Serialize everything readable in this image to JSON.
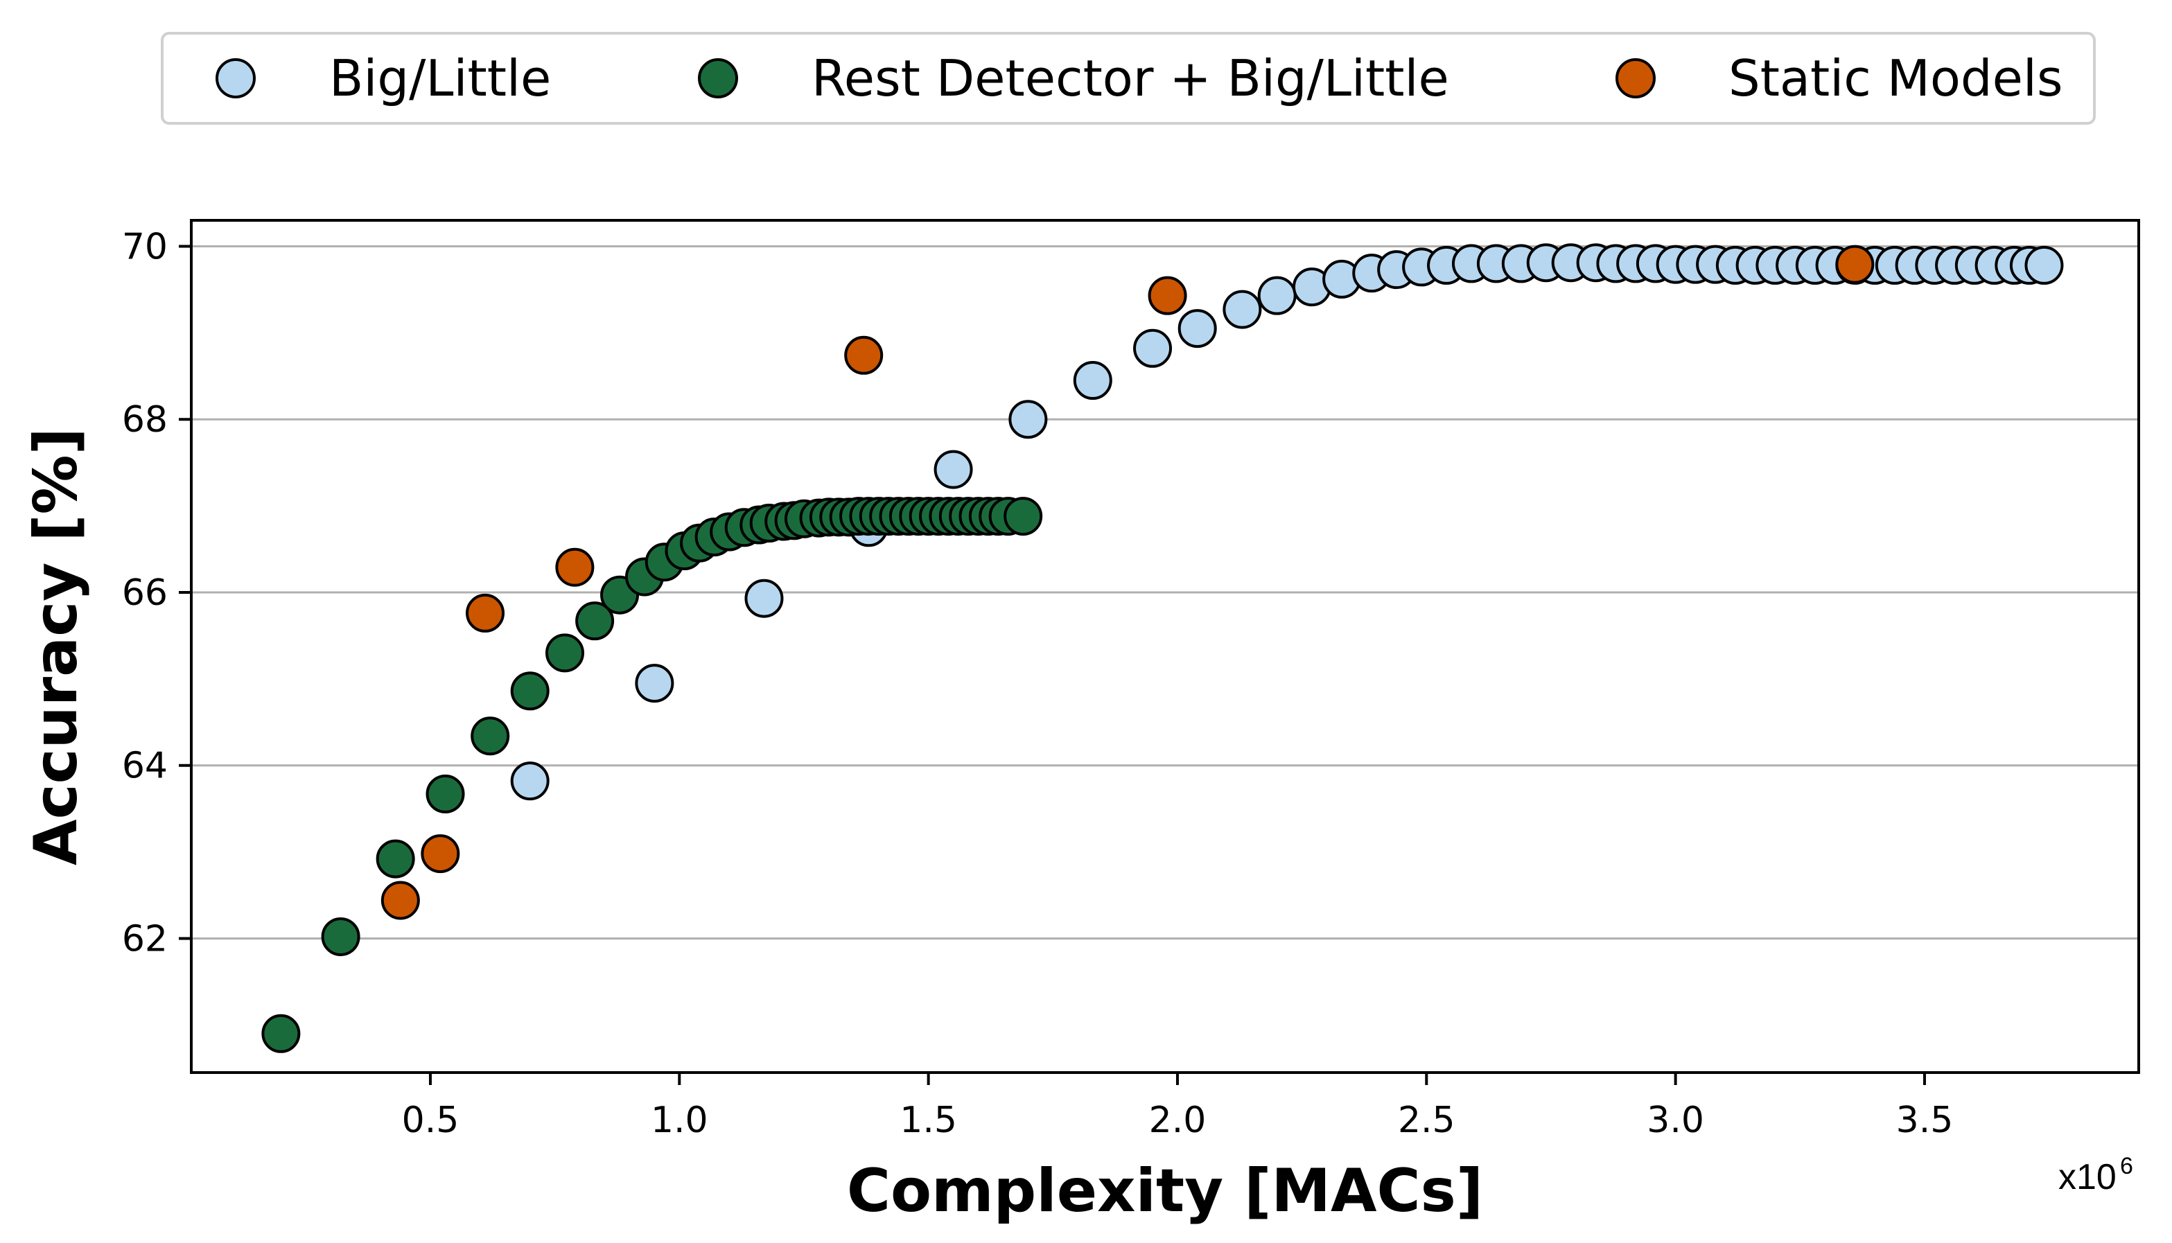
{
  "chart_data": {
    "type": "scatter",
    "title": "",
    "xlabel": "Complexity [MACs]",
    "ylabel": "Accuracy [%]",
    "x_multiplier": {
      "base": "x10",
      "exponent": "6"
    },
    "xlim": [
      0.02,
      3.93
    ],
    "ylim": [
      60.45,
      70.3
    ],
    "xticks": [
      0.5,
      1.0,
      1.5,
      2.0,
      2.5,
      3.0,
      3.5
    ],
    "xtick_labels": [
      "0.5",
      "1.0",
      "1.5",
      "2.0",
      "2.5",
      "3.0",
      "3.5"
    ],
    "yticks": [
      62,
      64,
      66,
      68,
      70
    ],
    "ytick_labels": [
      "62",
      "64",
      "66",
      "68",
      "70"
    ],
    "grid": "horizontal",
    "legend_position": "top-center",
    "series": [
      {
        "name": "Big/Little",
        "color": "#b7d7f0",
        "x": [
          0.7,
          0.95,
          1.17,
          1.38,
          1.55,
          1.7,
          1.83,
          1.95,
          2.04,
          2.13,
          2.2,
          2.27,
          2.33,
          2.39,
          2.44,
          2.49,
          2.54,
          2.59,
          2.64,
          2.69,
          2.74,
          2.79,
          2.84,
          2.88,
          2.92,
          2.96,
          3.0,
          3.04,
          3.08,
          3.12,
          3.16,
          3.2,
          3.24,
          3.28,
          3.32,
          3.36,
          3.4,
          3.44,
          3.48,
          3.52,
          3.56,
          3.6,
          3.64,
          3.68,
          3.71,
          3.74
        ],
        "y": [
          63.82,
          64.95,
          65.93,
          66.75,
          67.42,
          68.0,
          68.45,
          68.82,
          69.05,
          69.27,
          69.43,
          69.53,
          69.62,
          69.69,
          69.73,
          69.76,
          69.78,
          69.8,
          69.8,
          69.8,
          69.81,
          69.81,
          69.81,
          69.8,
          69.8,
          69.8,
          69.79,
          69.79,
          69.79,
          69.78,
          69.78,
          69.78,
          69.78,
          69.78,
          69.78,
          69.78,
          69.78,
          69.78,
          69.78,
          69.78,
          69.78,
          69.78,
          69.78,
          69.78,
          69.78,
          69.78
        ]
      },
      {
        "name": "Rest Detector + Big/Little",
        "color": "#1a6b3c",
        "x": [
          0.2,
          0.32,
          0.43,
          0.53,
          0.62,
          0.7,
          0.77,
          0.83,
          0.88,
          0.93,
          0.97,
          1.01,
          1.04,
          1.07,
          1.1,
          1.13,
          1.16,
          1.18,
          1.21,
          1.23,
          1.25,
          1.28,
          1.3,
          1.32,
          1.34,
          1.36,
          1.38,
          1.4,
          1.42,
          1.44,
          1.46,
          1.48,
          1.5,
          1.52,
          1.54,
          1.56,
          1.58,
          1.6,
          1.62,
          1.64,
          1.66,
          1.69
        ],
        "y": [
          60.9,
          62.02,
          62.92,
          63.67,
          64.34,
          64.86,
          65.3,
          65.67,
          65.97,
          66.18,
          66.35,
          66.48,
          66.57,
          66.64,
          66.7,
          66.75,
          66.78,
          66.8,
          66.82,
          66.83,
          66.85,
          66.86,
          66.87,
          66.87,
          66.87,
          66.88,
          66.88,
          66.88,
          66.88,
          66.88,
          66.88,
          66.88,
          66.88,
          66.88,
          66.88,
          66.88,
          66.88,
          66.88,
          66.88,
          66.88,
          66.88,
          66.88
        ]
      },
      {
        "name": "Static Models",
        "color": "#cc5500",
        "x": [
          0.44,
          0.52,
          0.61,
          0.79,
          1.37,
          1.98,
          3.36
        ],
        "y": [
          62.44,
          62.98,
          65.76,
          66.29,
          68.74,
          69.43,
          69.79
        ]
      }
    ]
  }
}
